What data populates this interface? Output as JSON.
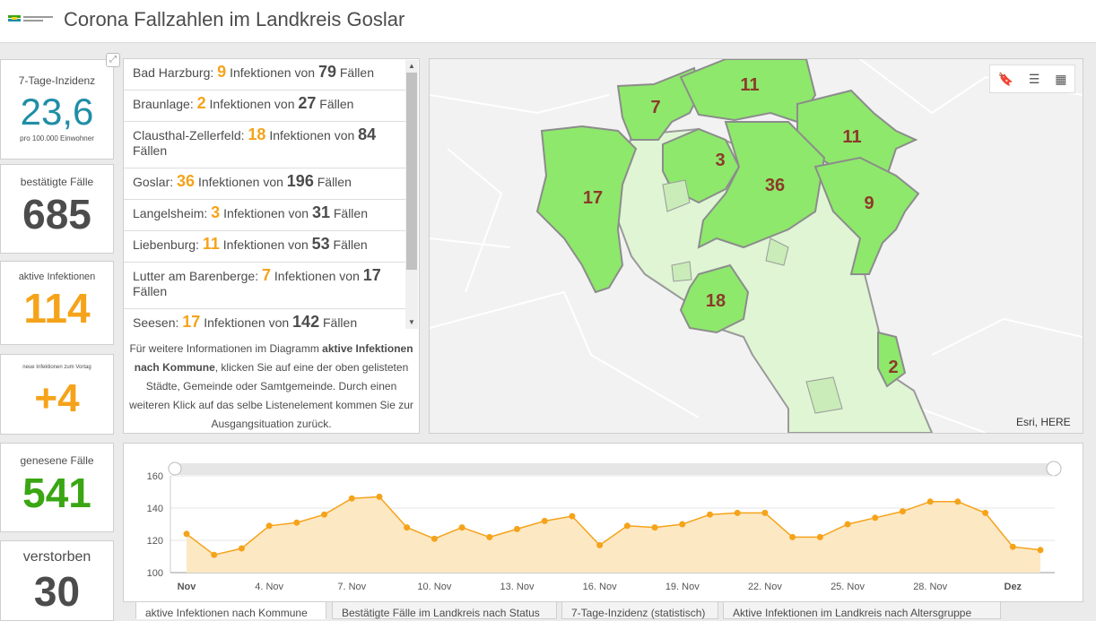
{
  "header": {
    "title": "Corona Fallzahlen im Landkreis Goslar",
    "logo_text": "LANDKREIS GOSLAR"
  },
  "colors": {
    "orange": "#f5a31a",
    "teal": "#1f8ea6",
    "green": "#3aa613",
    "dark": "#4c4c4c",
    "map_green": "#8ee86b",
    "map_light": "#dff5d4"
  },
  "kpis": [
    {
      "label": "7-Tage-Inzidenz",
      "value": "23,6",
      "sub": "pro 100.000 Einwohner"
    },
    {
      "label": "bestätigte Fälle",
      "value": "685"
    },
    {
      "label": "aktive Infektionen",
      "value": "114"
    },
    {
      "label": "neue Infektionen zum Vortag",
      "value": "+4"
    },
    {
      "label": "genesene Fälle",
      "value": "541"
    },
    {
      "label": "verstorben",
      "value": "30"
    }
  ],
  "list": {
    "items": [
      {
        "name": "Bad Harzburg:",
        "active": "9",
        "mid": "Infektionen von",
        "total": "79",
        "end": "Fällen"
      },
      {
        "name": "Braunlage:",
        "active": "2",
        "mid": "Infektionen von",
        "total": "27",
        "end": "Fällen"
      },
      {
        "name": "Clausthal-Zellerfeld:",
        "active": "18",
        "mid": "Infektionen von",
        "total": "84",
        "end": "Fällen"
      },
      {
        "name": "Goslar:",
        "active": "36",
        "mid": "Infektionen von",
        "total": "196",
        "end": "Fällen"
      },
      {
        "name": "Langelsheim:",
        "active": "3",
        "mid": "Infektionen von",
        "total": "31",
        "end": "Fällen"
      },
      {
        "name": "Liebenburg:",
        "active": "11",
        "mid": "Infektionen von",
        "total": "53",
        "end": "Fällen"
      },
      {
        "name": "Lutter am Barenberge:",
        "active": "7",
        "mid": "Infektionen von",
        "total": "17",
        "end": "Fällen"
      },
      {
        "name": "Seesen:",
        "active": "17",
        "mid": "Infektionen von",
        "total": "142",
        "end": "Fällen"
      }
    ],
    "note_before": "Für weitere Informationen im Diagramm ",
    "note_bold": "aktive Infektionen nach Kommune",
    "note_after": ", klicken Sie auf eine der oben gelisteten Städte, Gemeinde oder Samtgemeinde. Durch einen weiteren Klick auf das selbe Listenelement kommen Sie zur Ausgangsituation zurück."
  },
  "map": {
    "labels": [
      "11",
      "7",
      "11",
      "3",
      "36",
      "17",
      "9",
      "18",
      "2"
    ],
    "attribution": "Esri, HERE",
    "tools": [
      "bookmark-icon",
      "list-icon",
      "qr-icon"
    ]
  },
  "chart_data": {
    "type": "area",
    "x_tick_labels": [
      "Nov",
      "4. Nov",
      "7. Nov",
      "10. Nov",
      "13. Nov",
      "16. Nov",
      "19. Nov",
      "22. Nov",
      "25. Nov",
      "28. Nov",
      "Dez"
    ],
    "x": [
      "1. Nov",
      "2. Nov",
      "3. Nov",
      "4. Nov",
      "5. Nov",
      "6. Nov",
      "7. Nov",
      "8. Nov",
      "9. Nov",
      "10. Nov",
      "11. Nov",
      "12. Nov",
      "13. Nov",
      "14. Nov",
      "15. Nov",
      "16. Nov",
      "17. Nov",
      "18. Nov",
      "19. Nov",
      "20. Nov",
      "21. Nov",
      "22. Nov",
      "23. Nov",
      "24. Nov",
      "25. Nov",
      "26. Nov",
      "27. Nov",
      "28. Nov",
      "29. Nov",
      "30. Nov",
      "1. Dez",
      "2. Dez"
    ],
    "values": [
      124,
      111,
      115,
      129,
      131,
      136,
      146,
      147,
      128,
      121,
      128,
      122,
      127,
      132,
      135,
      117,
      129,
      128,
      130,
      136,
      137,
      137,
      122,
      122,
      130,
      134,
      138,
      144,
      144,
      137,
      116,
      114
    ],
    "ylim": [
      100,
      160
    ],
    "y_ticks": [
      100,
      120,
      140,
      160
    ],
    "grid": true
  },
  "tabs": [
    "aktive Infektionen nach Kommune",
    "Bestätigte Fälle im Landkreis nach Status",
    "7-Tage-Inzidenz (statistisch)",
    "Aktive Infektionen im Landkreis nach Altersgruppe"
  ]
}
